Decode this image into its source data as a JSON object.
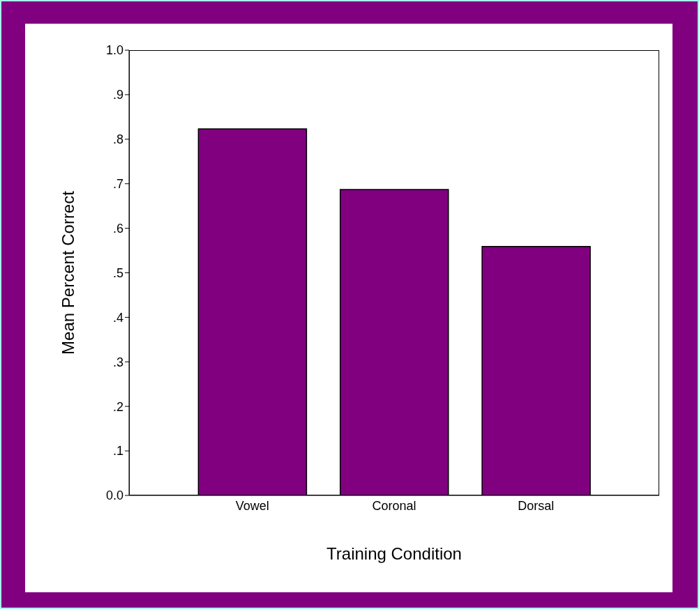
{
  "chart_data": {
    "type": "bar",
    "xlabel": "Training Condition",
    "ylabel": "Mean Percent Correct",
    "categories": [
      "Vowel",
      "Coronal",
      "Dorsal"
    ],
    "values": [
      0.823,
      0.687,
      0.559
    ],
    "color": "#800080",
    "ylim": [
      0,
      1
    ],
    "yticks": [
      {
        "value": 0,
        "label": "0.0"
      },
      {
        "value": 0.1,
        "label": ".1"
      },
      {
        "value": 0.2,
        "label": ".2"
      },
      {
        "value": 0.3,
        "label": ".3"
      },
      {
        "value": 0.4,
        "label": ".4"
      },
      {
        "value": 0.5,
        "label": ".5"
      },
      {
        "value": 0.6,
        "label": ".6"
      },
      {
        "value": 0.7,
        "label": ".7"
      },
      {
        "value": 0.8,
        "label": ".8"
      },
      {
        "value": 0.9,
        "label": ".9"
      },
      {
        "value": 1,
        "label": "1.0"
      }
    ],
    "grid": false,
    "legend": false
  }
}
